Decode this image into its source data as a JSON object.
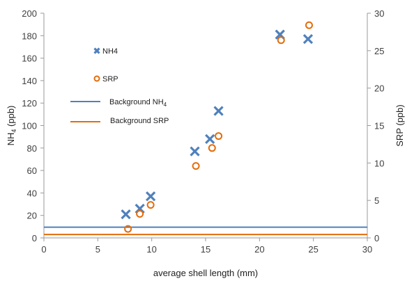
{
  "chart_data": {
    "type": "scatter",
    "xlabel": "average shell length (mm)",
    "ylabel_left": "NH4 (ppb)",
    "ylabel_right": "SRP (ppb)",
    "xlim": [
      0,
      30
    ],
    "ylim_left": [
      0,
      200
    ],
    "ylim_right": [
      0,
      30
    ],
    "x_ticks": [
      0,
      5,
      10,
      15,
      20,
      25,
      30
    ],
    "y_left_ticks": [
      0,
      20,
      40,
      60,
      80,
      100,
      120,
      140,
      160,
      180,
      200
    ],
    "y_right_ticks": [
      0,
      5,
      10,
      15,
      20,
      25,
      30
    ],
    "grid": false,
    "legend_position": "upper-left",
    "series": [
      {
        "name": "NH4",
        "axis": "left",
        "marker": "x",
        "color": "#4F81BD",
        "points": [
          {
            "x": 7.6,
            "y": 21
          },
          {
            "x": 8.9,
            "y": 26
          },
          {
            "x": 9.9,
            "y": 37
          },
          {
            "x": 14.0,
            "y": 77
          },
          {
            "x": 15.4,
            "y": 88
          },
          {
            "x": 16.2,
            "y": 113
          },
          {
            "x": 21.9,
            "y": 181
          },
          {
            "x": 24.5,
            "y": 177
          }
        ]
      },
      {
        "name": "SRP",
        "axis": "right",
        "marker": "circle",
        "color": "#E46C0A",
        "points": [
          {
            "x": 7.8,
            "y": 1.2
          },
          {
            "x": 8.9,
            "y": 3.2
          },
          {
            "x": 9.9,
            "y": 4.4
          },
          {
            "x": 14.1,
            "y": 9.6
          },
          {
            "x": 15.6,
            "y": 12.0
          },
          {
            "x": 16.2,
            "y": 13.6
          },
          {
            "x": 22.0,
            "y": 26.4
          },
          {
            "x": 24.6,
            "y": 28.4
          }
        ]
      }
    ],
    "reference_lines": [
      {
        "name": "Background NH4",
        "axis": "left",
        "y": 9.5,
        "color": "#4F81BD"
      },
      {
        "name": "Background SRP",
        "axis": "right",
        "y": 0.45,
        "color": "#E46C0A"
      }
    ]
  }
}
